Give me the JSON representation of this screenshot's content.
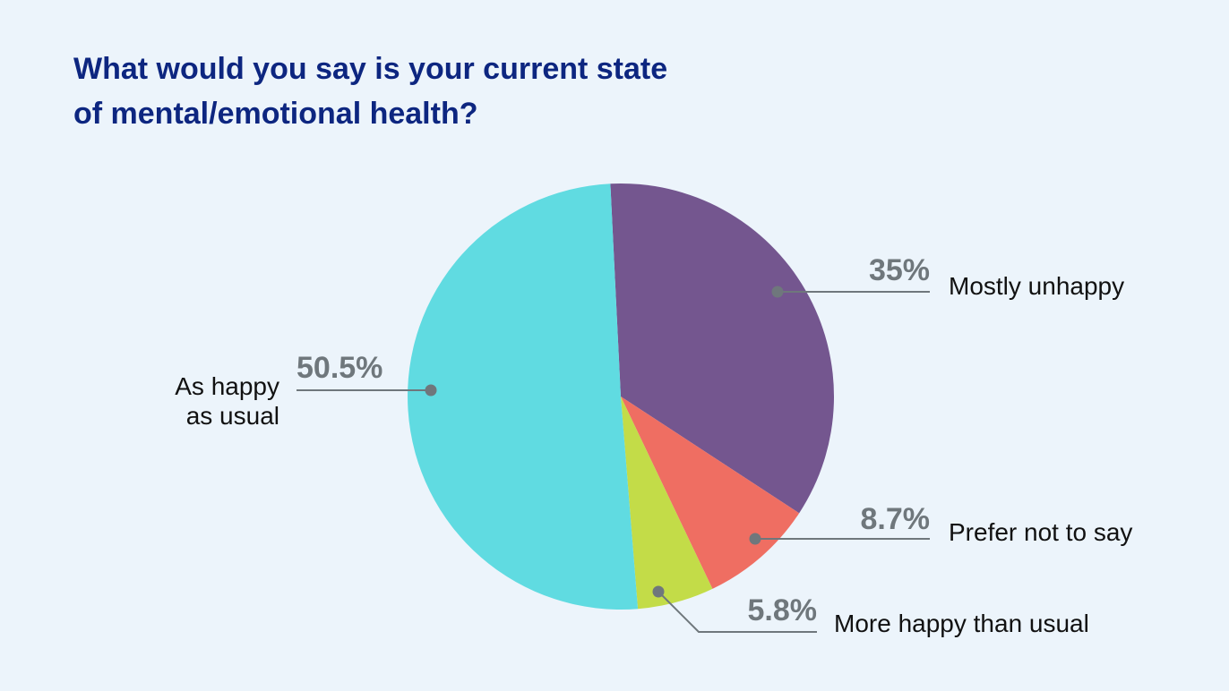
{
  "chart_data": {
    "type": "pie",
    "title": [
      "What would you say is your current state",
      "of mental/emotional health?"
    ],
    "slices": [
      {
        "label": "Mostly unhappy",
        "value": 35,
        "display": "35%",
        "color": "#74568f"
      },
      {
        "label": "Prefer not to say",
        "value": 8.7,
        "display": "8.7%",
        "color": "#ef6e62"
      },
      {
        "label": "More happy than usual",
        "value": 5.8,
        "display": "5.8%",
        "color": "#c3dc48"
      },
      {
        "label": "As happy as usual",
        "label_lines": [
          "As happy",
          "as usual"
        ],
        "value": 50.5,
        "display": "50.5%",
        "color": "#60dbe1"
      }
    ]
  }
}
